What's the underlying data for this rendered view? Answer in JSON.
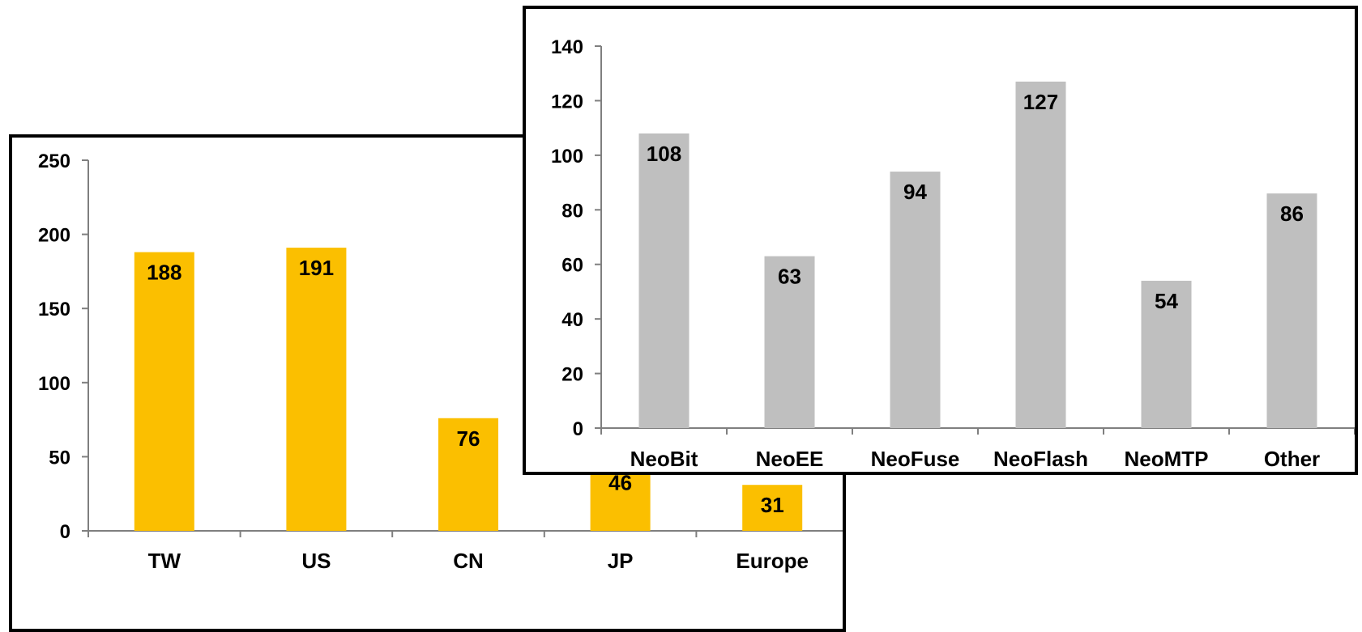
{
  "chart_data": [
    {
      "type": "bar",
      "categories": [
        "TW",
        "US",
        "CN",
        "JP",
        "Europe"
      ],
      "values": [
        188,
        191,
        76,
        46,
        31
      ],
      "data_labels": [
        "188",
        "191",
        "76",
        "46",
        "31"
      ],
      "ylim": [
        0,
        250
      ],
      "yticks": [
        0,
        50,
        100,
        150,
        200,
        250
      ],
      "ytick_labels": [
        "0",
        "50",
        "100",
        "150",
        "200",
        "250"
      ],
      "grid": false,
      "bar_color": "#FBBF00"
    },
    {
      "type": "bar",
      "categories": [
        "NeoBit",
        "NeoEE",
        "NeoFuse",
        "NeoFlash",
        "NeoMTP",
        "Other"
      ],
      "values": [
        108,
        63,
        94,
        127,
        54,
        86
      ],
      "data_labels": [
        "108",
        "63",
        "94",
        "127",
        "54",
        "86"
      ],
      "ylim": [
        0,
        140
      ],
      "yticks": [
        0,
        20,
        40,
        60,
        80,
        100,
        120,
        140
      ],
      "ytick_labels": [
        "0",
        "20",
        "40",
        "60",
        "80",
        "100",
        "120",
        "140"
      ],
      "grid": false,
      "bar_color": "#BFBFBF"
    }
  ]
}
